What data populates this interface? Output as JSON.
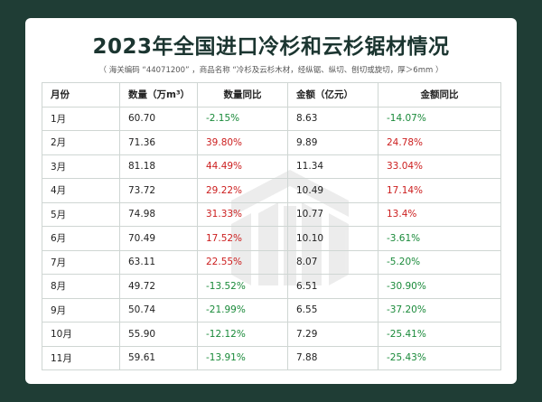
{
  "title": "2023年全国进口冷杉和云杉锯材情况",
  "subtitle": "（ 海关编码 “44071200” ，商品名称 “冷杉及云杉木材，经纵锯、纵切、刨切或旋切，厚＞6mm ）",
  "colors": {
    "background": "#1f3d35",
    "positive": "#cc1e1e",
    "negative": "#1a8a3a"
  },
  "table": {
    "headers": [
      "月份",
      "数量（万m³）",
      "数量同比",
      "金额（亿元）",
      "金额同比"
    ],
    "rows": [
      [
        "1月",
        "60.70",
        "-2.15%",
        "8.63",
        "-14.07%"
      ],
      [
        "2月",
        "71.36",
        "39.80%",
        "9.89",
        "24.78%"
      ],
      [
        "3月",
        "81.18",
        "44.49%",
        "11.34",
        "33.04%"
      ],
      [
        "4月",
        "73.72",
        "29.22%",
        "10.49",
        "17.14%"
      ],
      [
        "5月",
        "74.98",
        "31.33%",
        "10.77",
        "13.4%"
      ],
      [
        "6月",
        "70.49",
        "17.52%",
        "10.10",
        "-3.61%"
      ],
      [
        "7月",
        "63.11",
        "22.55%",
        "8.07",
        "-5.20%"
      ],
      [
        "8月",
        "49.72",
        "-13.52%",
        "6.51",
        "-30.90%"
      ],
      [
        "9月",
        "50.74",
        "-21.99%",
        "6.55",
        "-37.20%"
      ],
      [
        "10月",
        "55.90",
        "-12.12%",
        "7.29",
        "-25.41%"
      ],
      [
        "11月",
        "59.61",
        "-13.91%",
        "7.88",
        "-25.43%"
      ]
    ]
  }
}
